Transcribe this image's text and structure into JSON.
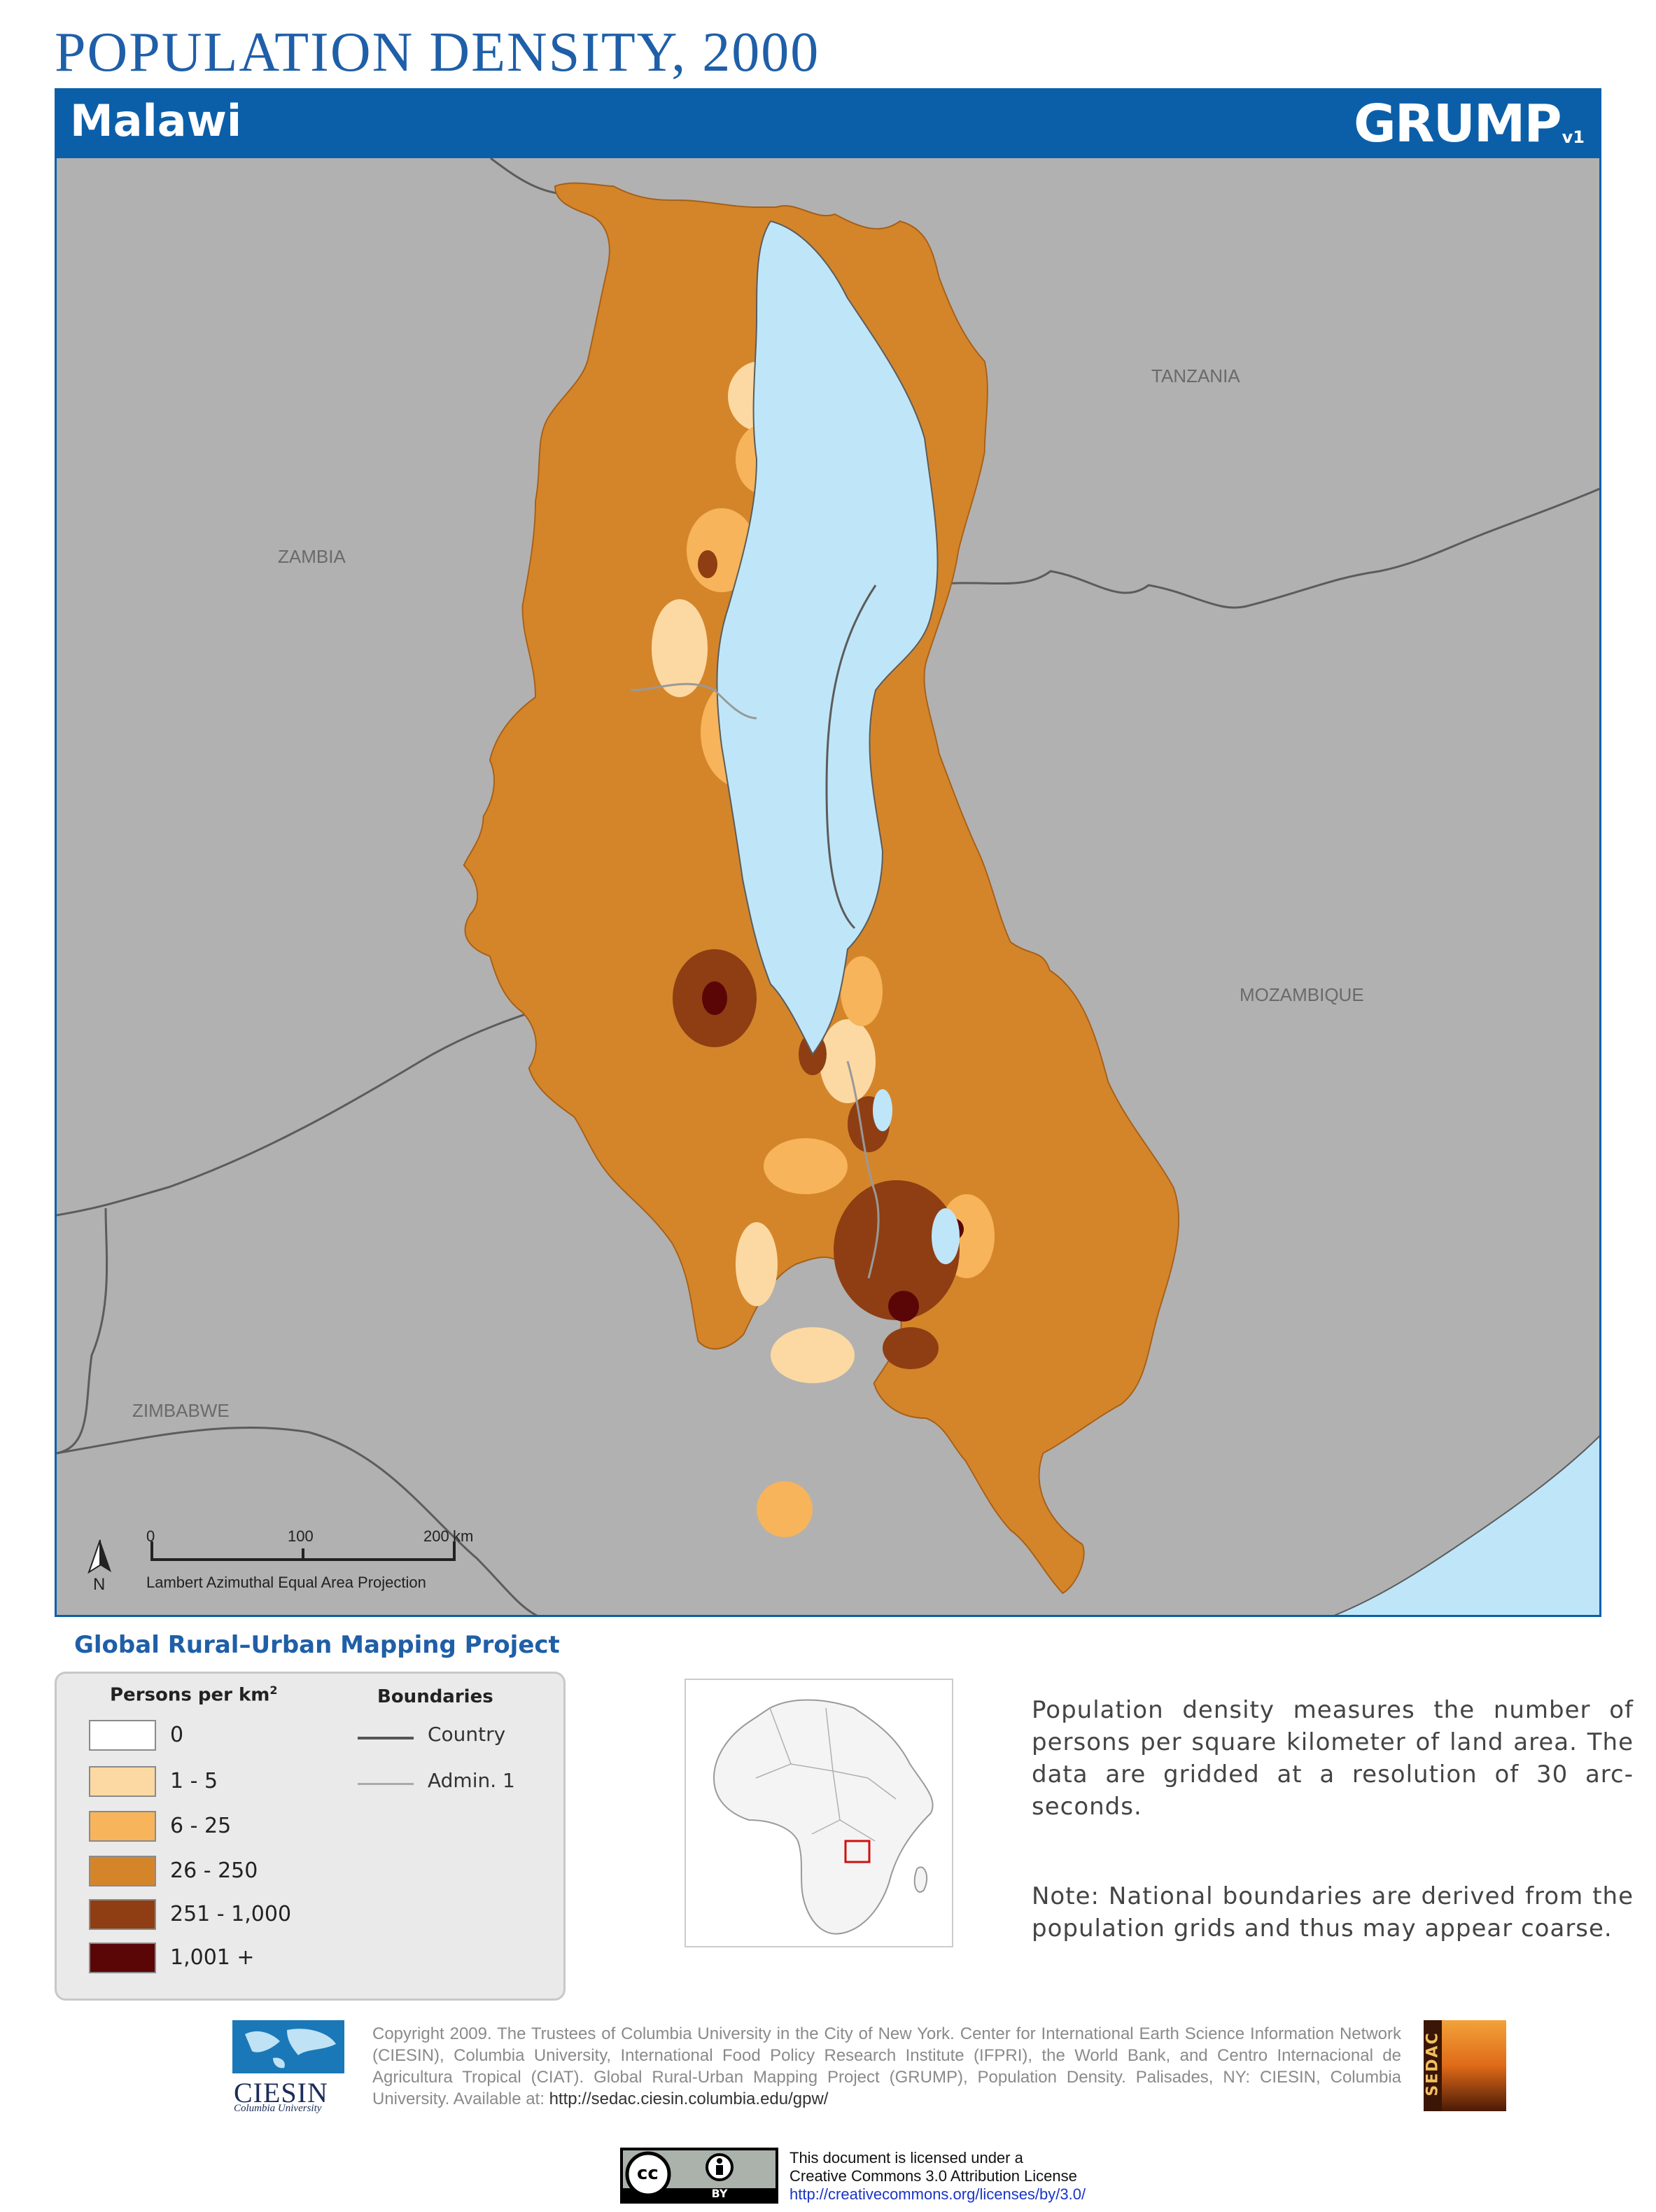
{
  "header": {
    "title": "POPULATION DENSITY, 2000",
    "country": "Malawi",
    "logo_text": "GRUMP",
    "logo_version": "v1",
    "banner_color": "#0b5fa9",
    "title_color": "#1f5fa8"
  },
  "map": {
    "labels": {
      "tanzania": "TANZANIA",
      "zambia": "ZAMBIA",
      "mozambique": "MOZAMBIQUE",
      "zimbabwe": "ZIMBABWE"
    },
    "scale": {
      "ticks": [
        "0",
        "100",
        "200"
      ],
      "unit": "km",
      "north": "N",
      "projection": "Lambert Azimuthal Equal Area Projection"
    },
    "colors": {
      "background_land": "#b1b1b1",
      "water": "#bfe6f8",
      "boundary": "#5c5c5c"
    }
  },
  "legend": {
    "project_title": "Global Rural–Urban Mapping Project",
    "density_heading": "Persons per km",
    "density_heading_sup": "2",
    "classes": [
      {
        "label": "0",
        "color": "#ffffff"
      },
      {
        "label": "1 - 5",
        "color": "#fcd9a2"
      },
      {
        "label": "6 - 25",
        "color": "#f7b45a"
      },
      {
        "label": "26 - 250",
        "color": "#d4852a"
      },
      {
        "label": "251 - 1,000",
        "color": "#8e3e12"
      },
      {
        "label": "1,001 +",
        "color": "#5a0606"
      }
    ],
    "boundaries_heading": "Boundaries",
    "boundaries": [
      {
        "label": "Country",
        "color": "#555555"
      },
      {
        "label": "Admin. 1",
        "color": "#aaaaaa"
      }
    ]
  },
  "description": {
    "text": "Population density measures the number of persons per square kilometer of land area. The data are gridded at a resolution of 30 arc-seconds.",
    "note": "Note: National boundaries are derived from the population grids and thus may appear coarse."
  },
  "footer": {
    "ciesin_name": "CIESIN",
    "ciesin_sub": "Columbia University",
    "copyright": "Copyright 2009. The Trustees of Columbia University in the City of New York. Center for International Earth Science Information Network (CIESIN), Columbia University, International Food Policy Research Institute (IFPRI), the World Bank, and Centro Internacional de Agricultura Tropical (CIAT). Global Rural-Urban Mapping Project (GRUMP), Population Density. Palisades, NY: CIESIN, Columbia University. Available at:",
    "copyright_url": "http://sedac.ciesin.columbia.edu/gpw/",
    "sedac_name": "SEDAC",
    "cc_label": "BY",
    "license_line1": "This document is licensed under a",
    "license_line2": "Creative Commons 3.0 Attribution License",
    "license_url": "http://creativecommons.org/licenses/by/3.0/"
  }
}
